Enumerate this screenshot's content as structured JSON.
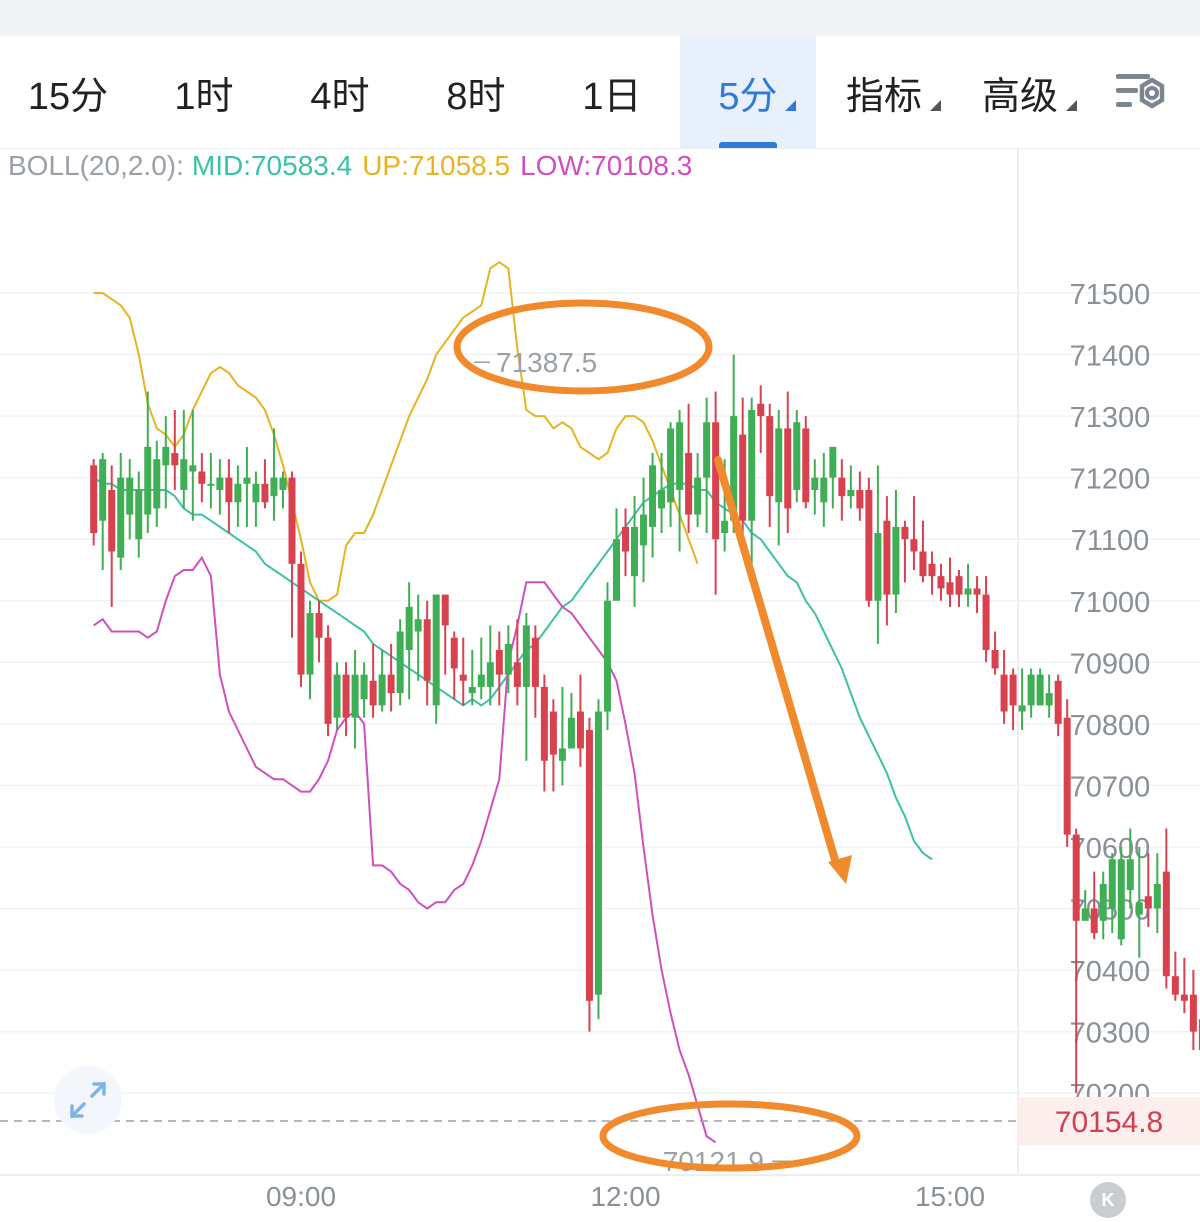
{
  "tabs": [
    {
      "label": "15分",
      "active": false,
      "dropdown": false
    },
    {
      "label": "1时",
      "active": false,
      "dropdown": false
    },
    {
      "label": "4时",
      "active": false,
      "dropdown": false
    },
    {
      "label": "8时",
      "active": false,
      "dropdown": false
    },
    {
      "label": "1日",
      "active": false,
      "dropdown": false
    },
    {
      "label": "5分",
      "active": true,
      "dropdown": true
    },
    {
      "label": "指标",
      "active": false,
      "dropdown": true
    },
    {
      "label": "高级",
      "active": false,
      "dropdown": true
    }
  ],
  "settings_icon": "chart-settings-icon",
  "indicator": {
    "name": "BOLL(20,2.0):",
    "mid": "MID:70583.4",
    "up": "UP:71058.5",
    "low": "LOW:70108.3"
  },
  "colors": {
    "accent": "#2f7ad8",
    "up_candle": "#3fae54",
    "down_candle": "#d8424f",
    "mid_line": "#3cc0a8",
    "upper_band": "#e6b422",
    "lower_band": "#cf4fbf",
    "annotation": "#f08a2c",
    "last_price": "#d04050"
  },
  "chart_data": {
    "type": "candlestick",
    "y_axis": {
      "ticks": [
        71500,
        71400,
        71300,
        71200,
        71100,
        71000,
        70900,
        70800,
        70700,
        70600,
        70500,
        70400,
        70300,
        70200
      ],
      "range": [
        70080,
        71600
      ]
    },
    "x_axis": {
      "ticks": [
        "09:00",
        "12:00",
        "15:00"
      ],
      "range": [
        "07:05",
        "15:30"
      ]
    },
    "high_label": "71387.5",
    "low_label": "70121.9",
    "last_price": "70154.8",
    "grid": true,
    "candles": [
      [
        71220,
        71110,
        71230,
        71090
      ],
      [
        71130,
        71230,
        71240,
        71050
      ],
      [
        71180,
        71080,
        71220,
        70990
      ],
      [
        71070,
        71200,
        71240,
        71050
      ],
      [
        71140,
        71200,
        71230,
        71100
      ],
      [
        71100,
        71180,
        71210,
        71070
      ],
      [
        71140,
        71250,
        71340,
        71110
      ],
      [
        71150,
        71230,
        71260,
        71120
      ],
      [
        71220,
        71250,
        71300,
        71150
      ],
      [
        71240,
        71220,
        71310,
        71180
      ],
      [
        71180,
        71230,
        71310,
        71150
      ],
      [
        71210,
        71220,
        71310,
        71130
      ],
      [
        71210,
        71190,
        71240,
        71160
      ],
      [
        71190,
        71190,
        71240,
        71150
      ],
      [
        71180,
        71200,
        71230,
        71140
      ],
      [
        71200,
        71160,
        71230,
        71110
      ],
      [
        71160,
        71190,
        71220,
        71120
      ],
      [
        71190,
        71200,
        71250,
        71120
      ],
      [
        71160,
        71190,
        71210,
        71120
      ],
      [
        71190,
        71160,
        71230,
        71150
      ],
      [
        71170,
        71200,
        71280,
        71130
      ],
      [
        71180,
        71200,
        71210,
        71150
      ],
      [
        71200,
        71060,
        71210,
        70940
      ],
      [
        71060,
        70880,
        71080,
        70860
      ],
      [
        70880,
        70980,
        71000,
        70840
      ],
      [
        70980,
        70940,
        71000,
        70900
      ],
      [
        70940,
        70800,
        70960,
        70780
      ],
      [
        70810,
        70880,
        70900,
        70790
      ],
      [
        70880,
        70810,
        70900,
        70780
      ],
      [
        70810,
        70880,
        70920,
        70760
      ],
      [
        70840,
        70880,
        70900,
        70810
      ],
      [
        70870,
        70830,
        70930,
        70810
      ],
      [
        70830,
        70880,
        70920,
        70820
      ],
      [
        70880,
        70850,
        70930,
        70820
      ],
      [
        70850,
        70950,
        70970,
        70830
      ],
      [
        70920,
        70990,
        71030,
        70840
      ],
      [
        70950,
        70970,
        71010,
        70870
      ],
      [
        70970,
        70870,
        71000,
        70830
      ],
      [
        70830,
        71010,
        71010,
        70800
      ],
      [
        71010,
        70960,
        71010,
        70880
      ],
      [
        70940,
        70890,
        70950,
        70840
      ],
      [
        70880,
        70870,
        70940,
        70830
      ],
      [
        70850,
        70860,
        70920,
        70830
      ],
      [
        70860,
        70880,
        70940,
        70840
      ],
      [
        70860,
        70900,
        70960,
        70830
      ],
      [
        70920,
        70880,
        70950,
        70830
      ],
      [
        70880,
        70930,
        70960,
        70850
      ],
      [
        70900,
        70860,
        70970,
        70830
      ],
      [
        70860,
        70960,
        70980,
        70740
      ],
      [
        70940,
        70860,
        70960,
        70810
      ],
      [
        70860,
        70740,
        70880,
        70690
      ],
      [
        70820,
        70750,
        70840,
        70690
      ],
      [
        70740,
        70760,
        70860,
        70700
      ],
      [
        70760,
        70810,
        70850,
        70790
      ],
      [
        70820,
        70760,
        70880,
        70730
      ],
      [
        70790,
        70350,
        70810,
        70300
      ],
      [
        70360,
        70820,
        70840,
        70320
      ],
      [
        70820,
        71000,
        71030,
        70790
      ],
      [
        71000,
        71100,
        71150,
        71030
      ],
      [
        71120,
        71080,
        71150,
        71040
      ],
      [
        71040,
        71120,
        71170,
        70990
      ],
      [
        71090,
        71140,
        71200,
        71030
      ],
      [
        71120,
        71220,
        71240,
        71070
      ],
      [
        71150,
        71180,
        71240,
        71110
      ],
      [
        71160,
        71280,
        71290,
        71120
      ],
      [
        71180,
        71290,
        71310,
        71080
      ],
      [
        71240,
        71140,
        71320,
        71110
      ],
      [
        71140,
        71200,
        71240,
        71120
      ],
      [
        71200,
        71290,
        71330,
        71110
      ],
      [
        71290,
        71100,
        71340,
        71010
      ],
      [
        71110,
        71130,
        71230,
        71080
      ],
      [
        71130,
        71300,
        71400,
        71110
      ],
      [
        71270,
        71130,
        71330,
        71090
      ],
      [
        71130,
        71310,
        71330,
        71060
      ],
      [
        71320,
        71300,
        71350,
        71240
      ],
      [
        71300,
        71170,
        71320,
        71120
      ],
      [
        71160,
        71280,
        71310,
        71090
      ],
      [
        71280,
        71150,
        71340,
        71110
      ],
      [
        71180,
        71290,
        71310,
        71160
      ],
      [
        71280,
        71160,
        71300,
        71150
      ],
      [
        71180,
        71200,
        71230,
        71140
      ],
      [
        71160,
        71200,
        71240,
        71120
      ],
      [
        71200,
        71250,
        71250,
        71150
      ],
      [
        71200,
        71170,
        71230,
        71130
      ],
      [
        71170,
        71180,
        71220,
        71150
      ],
      [
        71180,
        71150,
        71210,
        71130
      ],
      [
        71180,
        71000,
        71200,
        70990
      ],
      [
        71000,
        71110,
        71220,
        70930
      ],
      [
        71130,
        71010,
        71170,
        70960
      ],
      [
        71010,
        71120,
        71180,
        70980
      ],
      [
        71120,
        71100,
        71130,
        71030
      ],
      [
        71100,
        71080,
        71170,
        71050
      ],
      [
        71080,
        71040,
        71130,
        71030
      ],
      [
        71060,
        71040,
        71080,
        71010
      ],
      [
        71040,
        71020,
        71060,
        71000
      ],
      [
        71030,
        71010,
        71070,
        70990
      ],
      [
        71040,
        71010,
        71050,
        70990
      ],
      [
        71010,
        71020,
        71060,
        70990
      ],
      [
        71020,
        71010,
        71040,
        70980
      ],
      [
        71010,
        70920,
        71040,
        70900
      ],
      [
        70920,
        70890,
        70950,
        70880
      ],
      [
        70880,
        70820,
        70920,
        70800
      ],
      [
        70880,
        70830,
        70890,
        70790
      ],
      [
        70820,
        70830,
        70890,
        70790
      ],
      [
        70830,
        70880,
        70890,
        70810
      ],
      [
        70830,
        70880,
        70890,
        70830
      ],
      [
        70830,
        70850,
        70880,
        70810
      ],
      [
        70870,
        70800,
        70880,
        70780
      ],
      [
        70810,
        70620,
        70840,
        70600
      ],
      [
        70620,
        70480,
        70630,
        70200
      ],
      [
        70480,
        70500,
        70530,
        70490
      ],
      [
        70500,
        70460,
        70560,
        70450
      ],
      [
        70480,
        70540,
        70560,
        70450
      ],
      [
        70500,
        70580,
        70590,
        70460
      ],
      [
        70450,
        70580,
        70600,
        70440
      ],
      [
        70530,
        70580,
        70630,
        70500
      ],
      [
        70490,
        70510,
        70600,
        70420
      ],
      [
        70520,
        70500,
        70590,
        70470
      ],
      [
        70500,
        70540,
        70590,
        70460
      ],
      [
        70560,
        70390,
        70630,
        70370
      ],
      [
        70390,
        70360,
        70430,
        70350
      ],
      [
        70360,
        70350,
        70420,
        70330
      ],
      [
        70360,
        70300,
        70400,
        70270
      ],
      [
        70320,
        70270,
        70360,
        70250
      ],
      [
        70290,
        70230,
        70350,
        70200
      ],
      [
        70200,
        70150,
        70290,
        70120
      ]
    ],
    "mid_line": [
      [
        71200,
        71190
      ],
      [
        71190,
        71180
      ],
      [
        71180,
        71180
      ],
      [
        71180,
        71180
      ],
      [
        71180,
        71170
      ],
      [
        71150,
        71140
      ],
      [
        71140,
        71130
      ],
      [
        71120,
        71110
      ],
      [
        71100,
        71090
      ],
      [
        71080,
        71060
      ],
      [
        71050,
        71040
      ],
      [
        71030,
        71020
      ],
      [
        71010,
        71000
      ],
      [
        70990,
        70980
      ],
      [
        70970,
        70960
      ],
      [
        70950,
        70930
      ],
      [
        70920,
        70910
      ],
      [
        70900,
        70890
      ],
      [
        70880,
        70870
      ],
      [
        70860,
        70850
      ],
      [
        70840,
        70830
      ],
      [
        70840,
        70830
      ],
      [
        70840,
        70860
      ],
      [
        70880,
        70900
      ],
      [
        70920,
        70930
      ],
      [
        70950,
        70970
      ],
      [
        70990,
        71000
      ],
      [
        71020,
        71040
      ],
      [
        71060,
        71080
      ],
      [
        71100,
        71120
      ],
      [
        71140,
        71160
      ],
      [
        71170,
        71180
      ],
      [
        71190,
        71190
      ],
      [
        71190,
        71180
      ],
      [
        71180,
        71160
      ],
      [
        71150,
        71140
      ],
      [
        71130,
        71110
      ],
      [
        71100,
        71080
      ],
      [
        71060,
        71040
      ],
      [
        71030,
        71000
      ],
      [
        70980,
        70950
      ],
      [
        70920,
        70890
      ],
      [
        70850,
        70810
      ],
      [
        70780,
        70750
      ],
      [
        70720,
        70680
      ],
      [
        70650,
        70610
      ],
      [
        70590,
        70580
      ]
    ],
    "upper_band": [
      [
        71500,
        71500
      ],
      [
        71490,
        71480
      ],
      [
        71460,
        71400
      ],
      [
        71320,
        71280
      ],
      [
        71270,
        71250
      ],
      [
        71270,
        71310
      ],
      [
        71340,
        71370
      ],
      [
        71380,
        71370
      ],
      [
        71350,
        71340
      ],
      [
        71330,
        71310
      ],
      [
        71270,
        71220
      ],
      [
        71160,
        71100
      ],
      [
        71030,
        71000
      ],
      [
        71000,
        71010
      ],
      [
        71090,
        71110
      ],
      [
        71110,
        71140
      ],
      [
        71180,
        71220
      ],
      [
        71260,
        71300
      ],
      [
        71330,
        71360
      ],
      [
        71400,
        71420
      ],
      [
        71440,
        71460
      ],
      [
        71470,
        71480
      ],
      [
        71540,
        71550
      ],
      [
        71540,
        71410
      ],
      [
        71310,
        71300
      ],
      [
        71300,
        71280
      ],
      [
        71290,
        71280
      ],
      [
        71250,
        71240
      ],
      [
        71230,
        71240
      ],
      [
        71280,
        71300
      ],
      [
        71300,
        71290
      ],
      [
        71260,
        71220
      ],
      [
        71180,
        71140
      ],
      [
        71100,
        71060
      ]
    ],
    "lower_band": [
      [
        70960,
        70970
      ],
      [
        70950,
        70950
      ],
      [
        70950,
        70950
      ],
      [
        70940,
        70950
      ],
      [
        71000,
        71040
      ],
      [
        71050,
        71050
      ],
      [
        71070,
        71040
      ],
      [
        70880,
        70820
      ],
      [
        70790,
        70760
      ],
      [
        70730,
        70720
      ],
      [
        70710,
        70710
      ],
      [
        70700,
        70690
      ],
      [
        70690,
        70710
      ],
      [
        70740,
        70790
      ],
      [
        70810,
        70820
      ],
      [
        70800,
        70570
      ],
      [
        70570,
        70560
      ],
      [
        70540,
        70530
      ],
      [
        70510,
        70500
      ],
      [
        70510,
        70510
      ],
      [
        70530,
        70540
      ],
      [
        70570,
        70610
      ],
      [
        70660,
        70710
      ],
      [
        70900,
        70960
      ],
      [
        71030,
        71030
      ],
      [
        71030,
        71010
      ],
      [
        70990,
        70980
      ],
      [
        70960,
        70940
      ],
      [
        70920,
        70900
      ],
      [
        70870,
        70800
      ],
      [
        70720,
        70600
      ],
      [
        70490,
        70400
      ],
      [
        70330,
        70270
      ],
      [
        70230,
        70180
      ],
      [
        70130,
        70120
      ]
    ]
  }
}
